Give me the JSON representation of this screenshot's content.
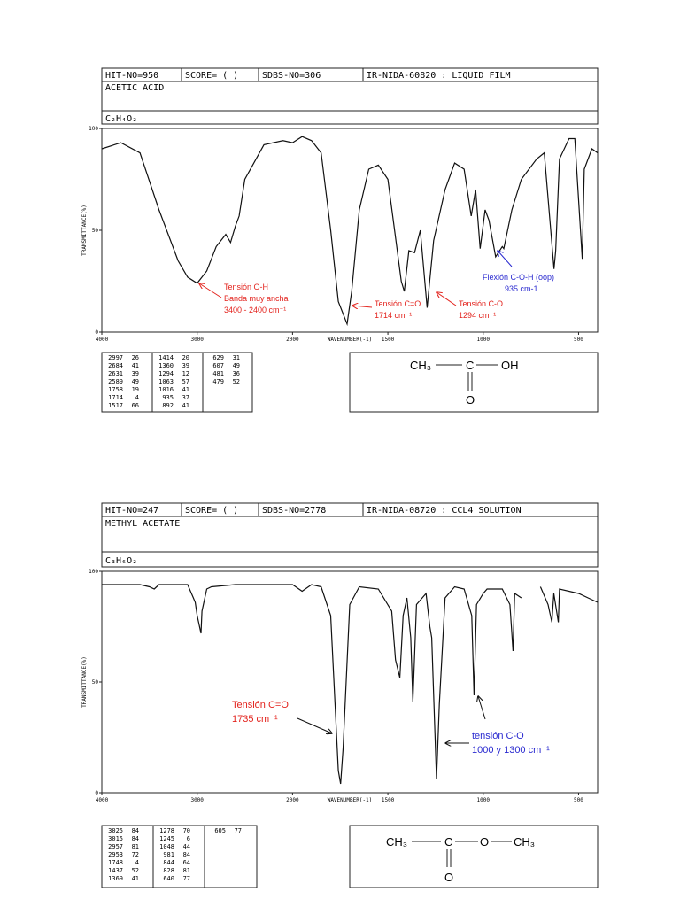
{
  "spectra": [
    {
      "header": {
        "hit_no": "HIT-NO=950",
        "score": "SCORE=  (  )",
        "sdbs_no": "SDBS-NO=306",
        "ir_nida": "IR-NIDA-60820 : LIQUID FILM"
      },
      "name": "ACETIC ACID",
      "formula": "C₂H₄O₂",
      "peaks": [
        [
          [
            2997,
            26
          ],
          [
            2684,
            41
          ],
          [
            2631,
            39
          ],
          [
            2589,
            49
          ],
          [
            1758,
            19
          ],
          [
            1714,
            4
          ],
          [
            1517,
            66
          ]
        ],
        [
          [
            1414,
            20
          ],
          [
            1360,
            39
          ],
          [
            1294,
            12
          ],
          [
            1063,
            57
          ],
          [
            1016,
            41
          ],
          [
            935,
            37
          ],
          [
            892,
            41
          ]
        ],
        [
          [
            629,
            31
          ],
          [
            607,
            49
          ],
          [
            481,
            36
          ],
          [
            479,
            52
          ]
        ]
      ],
      "structure": [
        "CH₃",
        "C",
        "OH",
        "O"
      ],
      "annotations": [
        [
          "Tensión O-H",
          "Banda muy ancha",
          "3400 - 2400 cm⁻¹"
        ],
        [
          "Tensión C=O",
          "1714 cm⁻¹"
        ],
        [
          "Tensión C-O",
          "1294 cm⁻¹"
        ],
        [
          "Flexión C-O-H (oop)",
          "935 cm-1"
        ]
      ]
    },
    {
      "header": {
        "hit_no": "HIT-NO=247",
        "score": "SCORE=  (  )",
        "sdbs_no": "SDBS-NO=2778",
        "ir_nida": "IR-NIDA-08720 : CCL4 SOLUTION"
      },
      "name": "METHYL ACETATE",
      "formula": "C₃H₆O₂",
      "peaks": [
        [
          [
            3025,
            84
          ],
          [
            3015,
            84
          ],
          [
            2957,
            81
          ],
          [
            2953,
            72
          ],
          [
            1748,
            4
          ],
          [
            1437,
            52
          ],
          [
            1369,
            41
          ]
        ],
        [
          [
            1278,
            70
          ],
          [
            1245,
            6
          ],
          [
            1048,
            44
          ],
          [
            981,
            84
          ],
          [
            844,
            64
          ],
          [
            828,
            81
          ],
          [
            640,
            77
          ]
        ],
        [
          [
            605,
            77
          ]
        ]
      ],
      "structure": [
        "CH₃",
        "C",
        "O",
        "CH₃",
        "O"
      ],
      "annotations": [
        [
          "Tensión C=O",
          "1735 cm⁻¹"
        ],
        [
          "tensión C-O",
          "1000 y 1300 cm⁻¹"
        ]
      ]
    }
  ],
  "chart_data": [
    {
      "type": "line",
      "xlabel": "WAVENUMBER(-1)",
      "ylabel": "TRANSMITTANCE(%)",
      "color": "#111111",
      "xlim": [
        4000,
        400
      ],
      "ylim": [
        0,
        100
      ],
      "xticks": [
        4000,
        3000,
        2000,
        1500,
        1000,
        500
      ],
      "yticks": [
        0,
        50,
        100
      ],
      "x": [
        4000,
        3800,
        3600,
        3400,
        3200,
        3100,
        3000,
        2950,
        2900,
        2800,
        2700,
        2650,
        2600,
        2560,
        2500,
        2300,
        2100,
        2000,
        1950,
        1900,
        1850,
        1800,
        1760,
        1714,
        1690,
        1650,
        1600,
        1550,
        1500,
        1430,
        1414,
        1390,
        1360,
        1330,
        1294,
        1260,
        1200,
        1150,
        1100,
        1063,
        1040,
        1016,
        990,
        970,
        935,
        900,
        892,
        850,
        800,
        720,
        680,
        629,
        620,
        600,
        550,
        520,
        481,
        470,
        430,
        400
      ],
      "values": [
        90,
        93,
        88,
        60,
        35,
        27,
        24,
        27,
        30,
        42,
        48,
        44,
        52,
        57,
        75,
        92,
        94,
        93,
        96,
        94,
        88,
        50,
        15,
        4,
        20,
        60,
        80,
        82,
        75,
        25,
        20,
        40,
        39,
        50,
        12,
        45,
        70,
        83,
        80,
        57,
        70,
        41,
        60,
        55,
        37,
        42,
        41,
        60,
        75,
        85,
        88,
        31,
        40,
        85,
        95,
        95,
        36,
        80,
        90,
        88
      ]
    },
    {
      "type": "line",
      "xlabel": "WAVENUMBER(-1)",
      "ylabel": "TRANSMITTANCE(%)",
      "color": "#111111",
      "xlim": [
        4000,
        400
      ],
      "ylim": [
        0,
        100
      ],
      "xticks": [
        4000,
        3000,
        2000,
        1500,
        1000,
        500
      ],
      "yticks": [
        0,
        50,
        100
      ],
      "x": [
        4000,
        3600,
        3500,
        3450,
        3400,
        3100,
        3040,
        3020,
        3000,
        2960,
        2950,
        2900,
        2850,
        2600,
        2500,
        2000,
        1950,
        1900,
        1850,
        1800,
        1760,
        1748,
        1735,
        1700,
        1650,
        1550,
        1480,
        1460,
        1437,
        1420,
        1400,
        1380,
        1369,
        1350,
        1300,
        1280,
        1270,
        1245,
        1230,
        1200,
        1150,
        1100,
        1060,
        1048,
        1035,
        1000,
        980,
        900,
        860,
        844,
        835,
        800,
        750,
        700,
        660,
        640,
        630,
        606,
        600,
        500,
        450,
        400
      ],
      "values": [
        94,
        94,
        93,
        92,
        94,
        94,
        88,
        86,
        80,
        72,
        82,
        92,
        93,
        94,
        94,
        94,
        91,
        94,
        93,
        80,
        10,
        4,
        20,
        85,
        93,
        92,
        82,
        60,
        52,
        80,
        88,
        70,
        41,
        85,
        90,
        75,
        70,
        6,
        40,
        88,
        93,
        92,
        80,
        44,
        85,
        90,
        92,
        92,
        85,
        64,
        90,
        88,
        null,
        93,
        85,
        77,
        90,
        77,
        92,
        90,
        88,
        86
      ]
    }
  ]
}
